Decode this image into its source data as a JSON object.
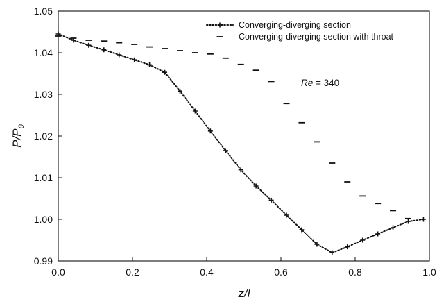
{
  "chart_data": {
    "type": "line",
    "xlabel_main": "z/l",
    "ylabel_main": "P/P",
    "ylabel_sub": "0",
    "xlim": [
      0,
      1.0
    ],
    "ylim": [
      0.99,
      1.05
    ],
    "xticks": [
      "0.0",
      "0.2",
      "0.4",
      "0.6",
      "0.8",
      "1.0"
    ],
    "yticks": [
      "0.99",
      "1.00",
      "1.01",
      "1.02",
      "1.03",
      "1.04",
      "1.05"
    ],
    "annotation": {
      "italic": "Re",
      "rest": " = 340"
    },
    "legend_position": "top-right",
    "series": [
      {
        "name": "Converging-diverging section",
        "style": "dotted-plus",
        "color": "#111111",
        "points": [
          [
            0.0,
            1.0445
          ],
          [
            0.041,
            1.043
          ],
          [
            0.082,
            1.0418
          ],
          [
            0.123,
            1.0407
          ],
          [
            0.164,
            1.0395
          ],
          [
            0.205,
            1.0383
          ],
          [
            0.246,
            1.0371
          ],
          [
            0.287,
            1.0353
          ],
          [
            0.328,
            1.0308
          ],
          [
            0.369,
            1.026
          ],
          [
            0.41,
            1.0212
          ],
          [
            0.451,
            1.0165
          ],
          [
            0.492,
            1.0119
          ],
          [
            0.533,
            1.008
          ],
          [
            0.574,
            1.0046
          ],
          [
            0.615,
            1.001
          ],
          [
            0.656,
            0.9975
          ],
          [
            0.697,
            0.994
          ],
          [
            0.738,
            0.992
          ],
          [
            0.779,
            0.9934
          ],
          [
            0.82,
            0.995
          ],
          [
            0.861,
            0.9965
          ],
          [
            0.902,
            0.998
          ],
          [
            0.943,
            0.9995
          ],
          [
            0.984,
            1.0
          ]
        ]
      },
      {
        "name": "Converging-diverging section with throat",
        "style": "dash-markers",
        "color": "#111111",
        "points": [
          [
            0.0,
            1.044
          ],
          [
            0.041,
            1.0435
          ],
          [
            0.082,
            1.043
          ],
          [
            0.123,
            1.0428
          ],
          [
            0.164,
            1.0424
          ],
          [
            0.205,
            1.042
          ],
          [
            0.246,
            1.0414
          ],
          [
            0.287,
            1.041
          ],
          [
            0.328,
            1.0405
          ],
          [
            0.369,
            1.04
          ],
          [
            0.41,
            1.0397
          ],
          [
            0.451,
            1.0387
          ],
          [
            0.492,
            1.0372
          ],
          [
            0.533,
            1.0358
          ],
          [
            0.574,
            1.0331
          ],
          [
            0.615,
            1.0278
          ],
          [
            0.656,
            1.0232
          ],
          [
            0.697,
            1.0186
          ],
          [
            0.738,
            1.0135
          ],
          [
            0.779,
            1.009
          ],
          [
            0.82,
            1.0056
          ],
          [
            0.861,
            1.0038
          ],
          [
            0.902,
            1.0021
          ],
          [
            0.943,
            1.0002
          ]
        ]
      }
    ]
  }
}
